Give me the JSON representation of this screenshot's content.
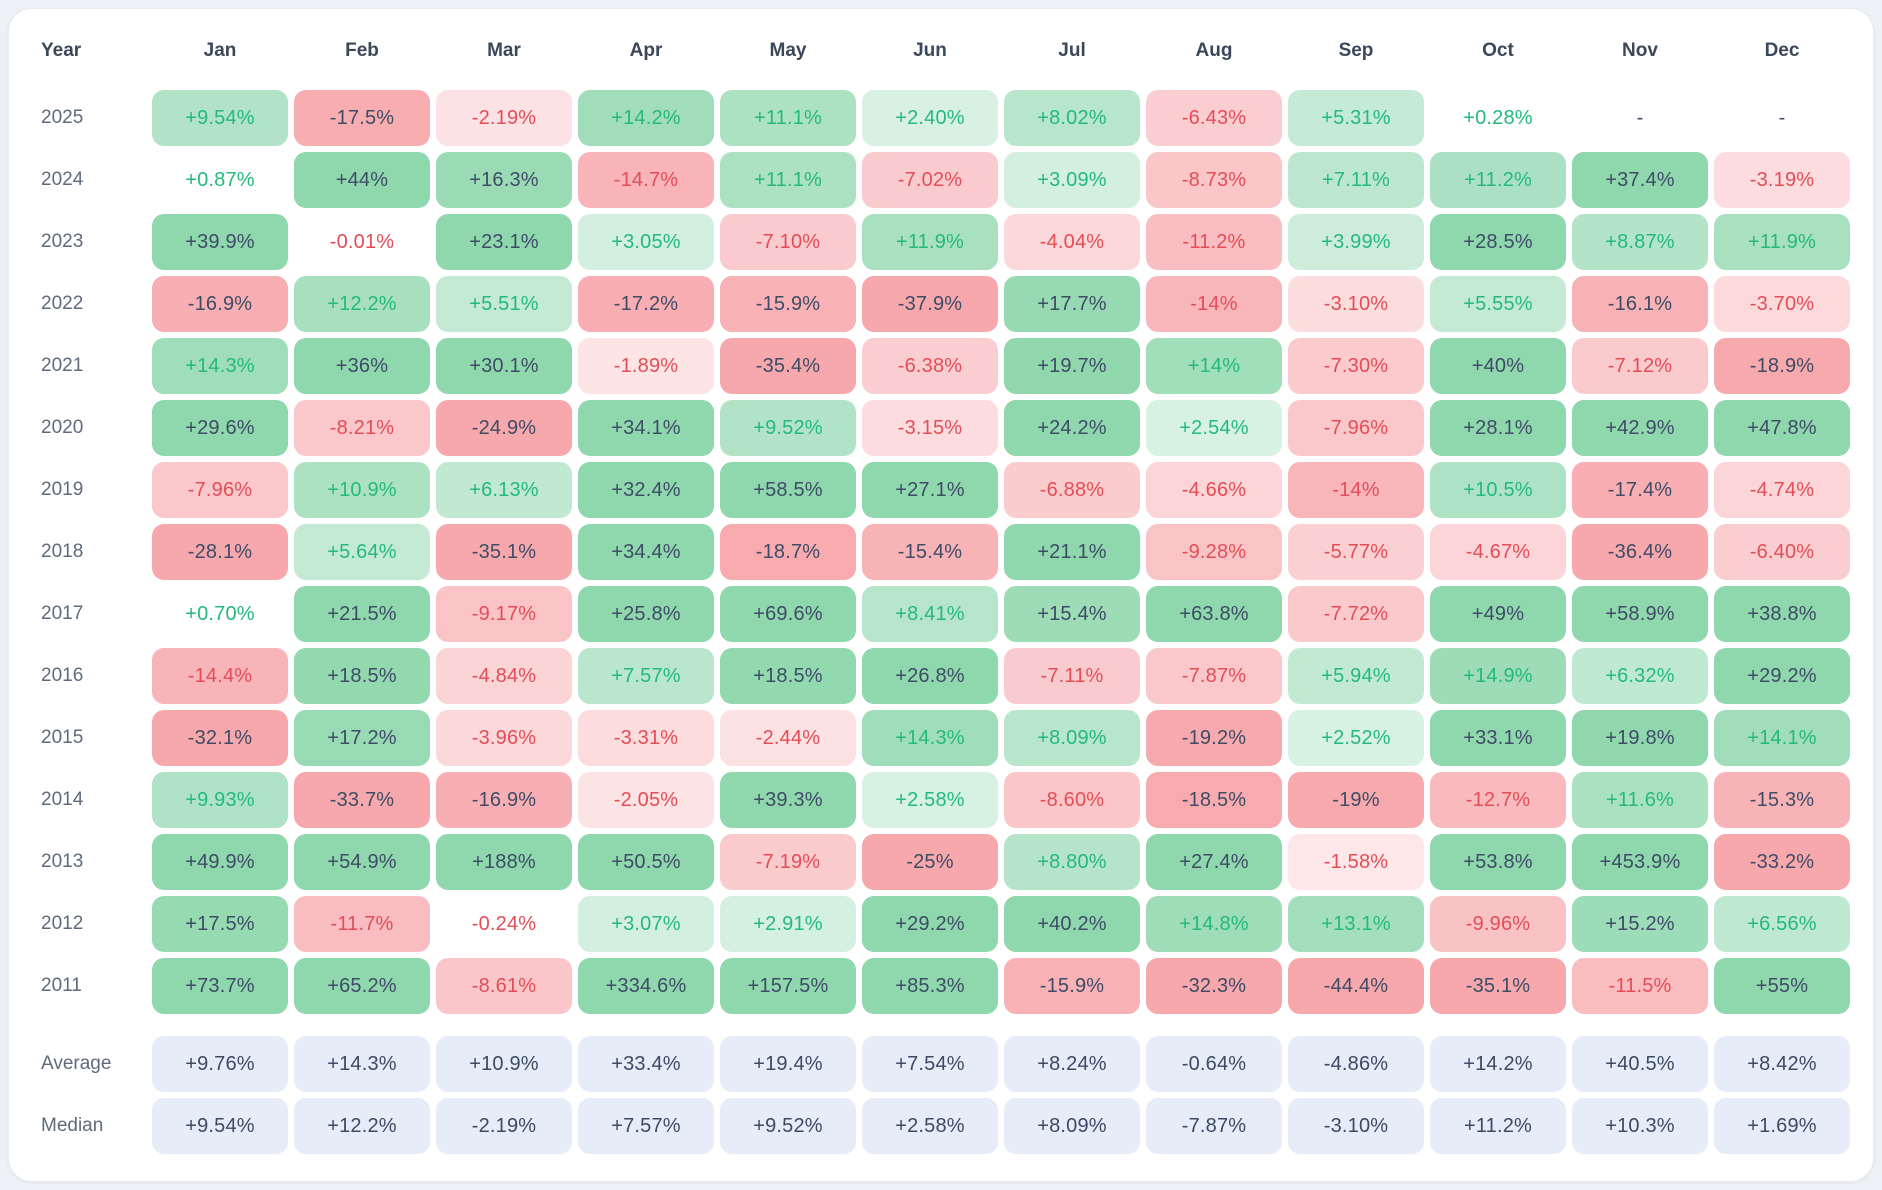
{
  "chart_data": {
    "type": "heatmap",
    "title": "",
    "year_header": "Year",
    "months": [
      "Jan",
      "Feb",
      "Mar",
      "Apr",
      "May",
      "Jun",
      "Jul",
      "Aug",
      "Sep",
      "Oct",
      "Nov",
      "Dec"
    ],
    "empty_value": "-",
    "rows": [
      {
        "year": "2025",
        "values": [
          "+9.54%",
          "-17.5%",
          "-2.19%",
          "+14.2%",
          "+11.1%",
          "+2.40%",
          "+8.02%",
          "-6.43%",
          "+5.31%",
          "+0.28%",
          "-",
          "-"
        ]
      },
      {
        "year": "2024",
        "values": [
          "+0.87%",
          "+44%",
          "+16.3%",
          "-14.7%",
          "+11.1%",
          "-7.02%",
          "+3.09%",
          "-8.73%",
          "+7.11%",
          "+11.2%",
          "+37.4%",
          "-3.19%"
        ]
      },
      {
        "year": "2023",
        "values": [
          "+39.9%",
          "-0.01%",
          "+23.1%",
          "+3.05%",
          "-7.10%",
          "+11.9%",
          "-4.04%",
          "-11.2%",
          "+3.99%",
          "+28.5%",
          "+8.87%",
          "+11.9%"
        ]
      },
      {
        "year": "2022",
        "values": [
          "-16.9%",
          "+12.2%",
          "+5.51%",
          "-17.2%",
          "-15.9%",
          "-37.9%",
          "+17.7%",
          "-14%",
          "-3.10%",
          "+5.55%",
          "-16.1%",
          "-3.70%"
        ]
      },
      {
        "year": "2021",
        "values": [
          "+14.3%",
          "+36%",
          "+30.1%",
          "-1.89%",
          "-35.4%",
          "-6.38%",
          "+19.7%",
          "+14%",
          "-7.30%",
          "+40%",
          "-7.12%",
          "-18.9%"
        ]
      },
      {
        "year": "2020",
        "values": [
          "+29.6%",
          "-8.21%",
          "-24.9%",
          "+34.1%",
          "+9.52%",
          "-3.15%",
          "+24.2%",
          "+2.54%",
          "-7.96%",
          "+28.1%",
          "+42.9%",
          "+47.8%"
        ]
      },
      {
        "year": "2019",
        "values": [
          "-7.96%",
          "+10.9%",
          "+6.13%",
          "+32.4%",
          "+58.5%",
          "+27.1%",
          "-6.88%",
          "-4.66%",
          "-14%",
          "+10.5%",
          "-17.4%",
          "-4.74%"
        ]
      },
      {
        "year": "2018",
        "values": [
          "-28.1%",
          "+5.64%",
          "-35.1%",
          "+34.4%",
          "-18.7%",
          "-15.4%",
          "+21.1%",
          "-9.28%",
          "-5.77%",
          "-4.67%",
          "-36.4%",
          "-6.40%"
        ]
      },
      {
        "year": "2017",
        "values": [
          "+0.70%",
          "+21.5%",
          "-9.17%",
          "+25.8%",
          "+69.6%",
          "+8.41%",
          "+15.4%",
          "+63.8%",
          "-7.72%",
          "+49%",
          "+58.9%",
          "+38.8%"
        ]
      },
      {
        "year": "2016",
        "values": [
          "-14.4%",
          "+18.5%",
          "-4.84%",
          "+7.57%",
          "+18.5%",
          "+26.8%",
          "-7.11%",
          "-7.87%",
          "+5.94%",
          "+14.9%",
          "+6.32%",
          "+29.2%"
        ]
      },
      {
        "year": "2015",
        "values": [
          "-32.1%",
          "+17.2%",
          "-3.96%",
          "-3.31%",
          "-2.44%",
          "+14.3%",
          "+8.09%",
          "-19.2%",
          "+2.52%",
          "+33.1%",
          "+19.8%",
          "+14.1%"
        ]
      },
      {
        "year": "2014",
        "values": [
          "+9.93%",
          "-33.7%",
          "-16.9%",
          "-2.05%",
          "+39.3%",
          "+2.58%",
          "-8.60%",
          "-18.5%",
          "-19%",
          "-12.7%",
          "+11.6%",
          "-15.3%"
        ]
      },
      {
        "year": "2013",
        "values": [
          "+49.9%",
          "+54.9%",
          "+188%",
          "+50.5%",
          "-7.19%",
          "-25%",
          "+8.80%",
          "+27.4%",
          "-1.58%",
          "+53.8%",
          "+453.9%",
          "-33.2%"
        ]
      },
      {
        "year": "2012",
        "values": [
          "+17.5%",
          "-11.7%",
          "-0.24%",
          "+3.07%",
          "+2.91%",
          "+29.2%",
          "+40.2%",
          "+14.8%",
          "+13.1%",
          "-9.96%",
          "+15.2%",
          "+6.56%"
        ]
      },
      {
        "year": "2011",
        "values": [
          "+73.7%",
          "+65.2%",
          "-8.61%",
          "+334.6%",
          "+157.5%",
          "+85.3%",
          "-15.9%",
          "-32.3%",
          "-44.4%",
          "-35.1%",
          "-11.5%",
          "+55%"
        ]
      }
    ],
    "summary_rows": [
      {
        "label": "Average",
        "values": [
          "+9.76%",
          "+14.3%",
          "+10.9%",
          "+33.4%",
          "+19.4%",
          "+7.54%",
          "+8.24%",
          "-0.64%",
          "-4.86%",
          "+14.2%",
          "+40.5%",
          "+8.42%"
        ]
      },
      {
        "label": "Median",
        "values": [
          "+9.54%",
          "+12.2%",
          "-2.19%",
          "+7.57%",
          "+9.52%",
          "+2.58%",
          "+8.09%",
          "-7.87%",
          "-3.10%",
          "+11.2%",
          "+10.3%",
          "+1.69%"
        ]
      }
    ],
    "scale": {
      "cap_percent": 20,
      "dark_text_threshold_percent": 15,
      "white_threshold_percent": 1
    }
  },
  "colors": {
    "page_bg": "#edf0f4",
    "card_bg": "#ffffff",
    "card_border": "#e8ebf0",
    "header_text": "#3b4859",
    "year_text": "#5f6b7d",
    "dark_text": "#3e4c66",
    "positive_text": "#24b97d",
    "negative_text": "#e44d56",
    "positive_max_bg": "#8fd7ad",
    "negative_max_bg": "#f7a8ac",
    "summary_bg": "#e7edf8",
    "summary_text": "#3d4a63"
  }
}
